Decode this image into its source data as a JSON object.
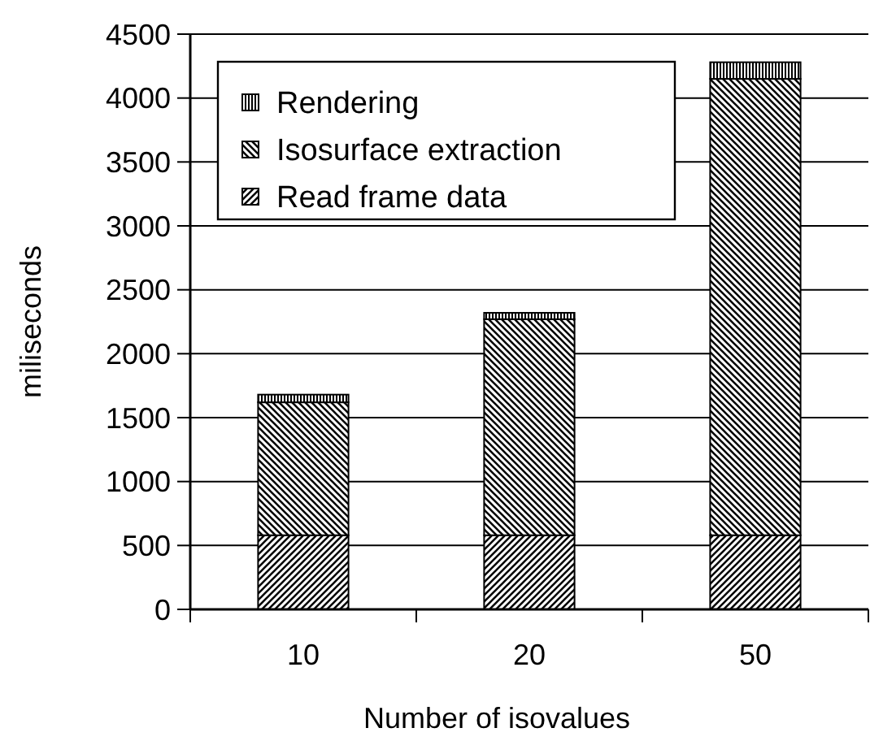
{
  "chart_data": {
    "type": "bar",
    "stacked": true,
    "xlabel": "Number of isovalues",
    "ylabel": "miliseconds",
    "categories": [
      "10",
      "20",
      "50"
    ],
    "series": [
      {
        "name": "Read frame data",
        "color": "#000000",
        "values": [
          580,
          580,
          580
        ]
      },
      {
        "name": "Isosurface extraction",
        "color": "#000000",
        "values": [
          1040,
          1690,
          3570
        ]
      },
      {
        "name": "Rendering",
        "color": "#000000",
        "values": [
          60,
          50,
          130
        ]
      }
    ],
    "ylim": [
      0,
      4500
    ],
    "yticks": [
      0,
      500,
      1000,
      1500,
      2000,
      2500,
      3000,
      3500,
      4000,
      4500
    ],
    "grid": "y",
    "legend": "top left"
  }
}
